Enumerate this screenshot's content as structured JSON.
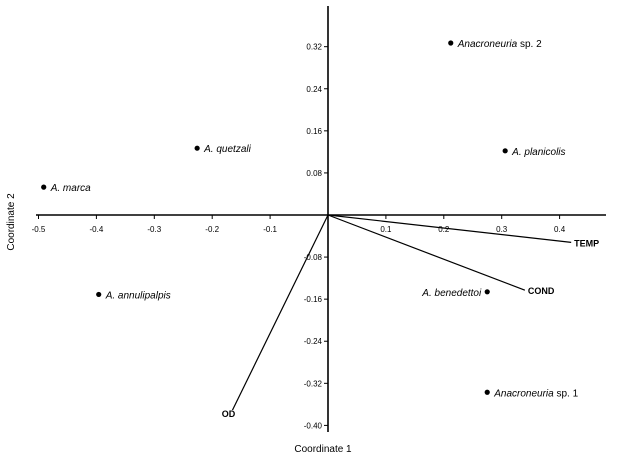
{
  "chart_data": {
    "type": "scatter",
    "xlabel": "Coordinate 1",
    "ylabel": "Coordinate 2",
    "xlim": [
      -0.5,
      0.5
    ],
    "ylim": [
      -0.4,
      0.4
    ],
    "x_ticks": [
      -0.5,
      -0.4,
      -0.3,
      -0.2,
      -0.1,
      0.1,
      0.2,
      0.3,
      0.4
    ],
    "x_tick_labels": [
      "-0.5",
      "-0.4",
      "-0.3",
      "-0.2",
      "-0.1",
      "0.1",
      "0.2",
      "0.3",
      "0.4"
    ],
    "y_ticks": [
      0.32,
      0.24,
      0.16,
      0.08,
      -0.08,
      -0.16,
      -0.24,
      -0.32,
      -0.4
    ],
    "y_tick_labels": [
      "0.32",
      "0.24",
      "0.16",
      "0.08",
      "-0.08",
      "-0.16",
      "-0.24",
      "-0.32",
      "-0.40"
    ],
    "grid": false,
    "points": [
      {
        "label_italic": "Anacroneuria",
        "label_rest": " sp. 2",
        "x": 0.212,
        "y": 0.327
      },
      {
        "label_italic": "A. quetzali",
        "label_rest": "",
        "x": -0.226,
        "y": 0.127
      },
      {
        "label_italic": "A. planicolis",
        "label_rest": "",
        "x": 0.306,
        "y": 0.122
      },
      {
        "label_italic": "A. marca",
        "label_rest": "",
        "x": -0.491,
        "y": 0.053
      },
      {
        "label_italic": "A. annulipalpis",
        "label_rest": "",
        "x": -0.396,
        "y": -0.151
      },
      {
        "label_italic": "A. benedettoi",
        "label_rest": "",
        "x": 0.275,
        "y": -0.146
      },
      {
        "label_italic": "Anacroneuria",
        "label_rest": " sp. 1",
        "x": 0.275,
        "y": -0.337
      }
    ],
    "vectors": [
      {
        "label": "TEMP",
        "x": 0.42,
        "y": -0.052
      },
      {
        "label": "COND",
        "x": 0.34,
        "y": -0.143
      },
      {
        "label": "OD",
        "x": -0.165,
        "y": -0.371
      }
    ]
  }
}
